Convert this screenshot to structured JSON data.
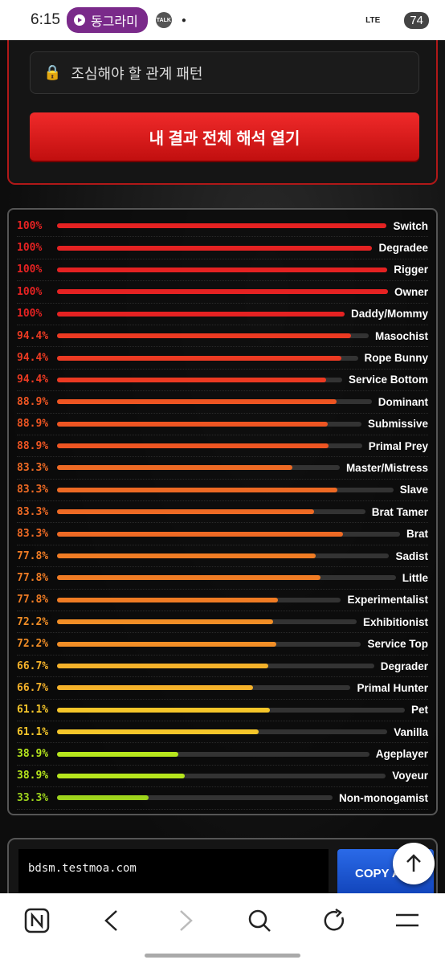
{
  "status_bar": {
    "time": "6:15",
    "app_pill": "동그라미",
    "talk": "TALK",
    "network": "LTE",
    "battery": "74"
  },
  "locked_item": {
    "label": "조심해야 할 관계 패턴"
  },
  "primary_button": {
    "label": "내 결과 전체 해석 열기"
  },
  "results": {
    "items": [
      {
        "label": "100%",
        "value": 100,
        "name": "Switch",
        "color": "#e52222"
      },
      {
        "label": "100%",
        "value": 100,
        "name": "Degradee",
        "color": "#e52222"
      },
      {
        "label": "100%",
        "value": 100,
        "name": "Rigger",
        "color": "#e52222"
      },
      {
        "label": "100%",
        "value": 100,
        "name": "Owner",
        "color": "#e52222"
      },
      {
        "label": "100%",
        "value": 100,
        "name": "Daddy/Mommy",
        "color": "#e52222"
      },
      {
        "label": "94.4%",
        "value": 94.4,
        "name": "Masochist",
        "color": "#ec3a22"
      },
      {
        "label": "94.4%",
        "value": 94.4,
        "name": "Rope Bunny",
        "color": "#ec3a22"
      },
      {
        "label": "94.4%",
        "value": 94.4,
        "name": "Service Bottom",
        "color": "#ec3a22"
      },
      {
        "label": "88.9%",
        "value": 88.9,
        "name": "Dominant",
        "color": "#ee5522"
      },
      {
        "label": "88.9%",
        "value": 88.9,
        "name": "Submissive",
        "color": "#ee5522"
      },
      {
        "label": "88.9%",
        "value": 88.9,
        "name": "Primal Prey",
        "color": "#ee5522"
      },
      {
        "label": "83.3%",
        "value": 83.3,
        "name": "Master/Mistress",
        "color": "#ee6a24"
      },
      {
        "label": "83.3%",
        "value": 83.3,
        "name": "Slave",
        "color": "#ee6a24"
      },
      {
        "label": "83.3%",
        "value": 83.3,
        "name": "Brat Tamer",
        "color": "#ee6a24"
      },
      {
        "label": "83.3%",
        "value": 83.3,
        "name": "Brat",
        "color": "#ee6a24"
      },
      {
        "label": "77.8%",
        "value": 77.8,
        "name": "Sadist",
        "color": "#f07c24"
      },
      {
        "label": "77.8%",
        "value": 77.8,
        "name": "Little",
        "color": "#f07c24"
      },
      {
        "label": "77.8%",
        "value": 77.8,
        "name": "Experimentalist",
        "color": "#f07c24"
      },
      {
        "label": "72.2%",
        "value": 72.2,
        "name": "Exhibitionist",
        "color": "#f28e26"
      },
      {
        "label": "72.2%",
        "value": 72.2,
        "name": "Service Top",
        "color": "#f28e26"
      },
      {
        "label": "66.7%",
        "value": 66.7,
        "name": "Degrader",
        "color": "#f5b22a"
      },
      {
        "label": "66.7%",
        "value": 66.7,
        "name": "Primal Hunter",
        "color": "#f5b22a"
      },
      {
        "label": "61.1%",
        "value": 61.1,
        "name": "Pet",
        "color": "#f5c62a"
      },
      {
        "label": "61.1%",
        "value": 61.1,
        "name": "Vanilla",
        "color": "#f5c62a"
      },
      {
        "label": "38.9%",
        "value": 38.9,
        "name": "Ageplayer",
        "color": "#b6e61d"
      },
      {
        "label": "38.9%",
        "value": 38.9,
        "name": "Voyeur",
        "color": "#b6e61d"
      },
      {
        "label": "33.3%",
        "value": 33.3,
        "name": "Non-monogamist",
        "color": "#9ed41c"
      }
    ]
  },
  "share": {
    "url": "bdsm.testmoa.com",
    "button": "COPY A"
  }
}
